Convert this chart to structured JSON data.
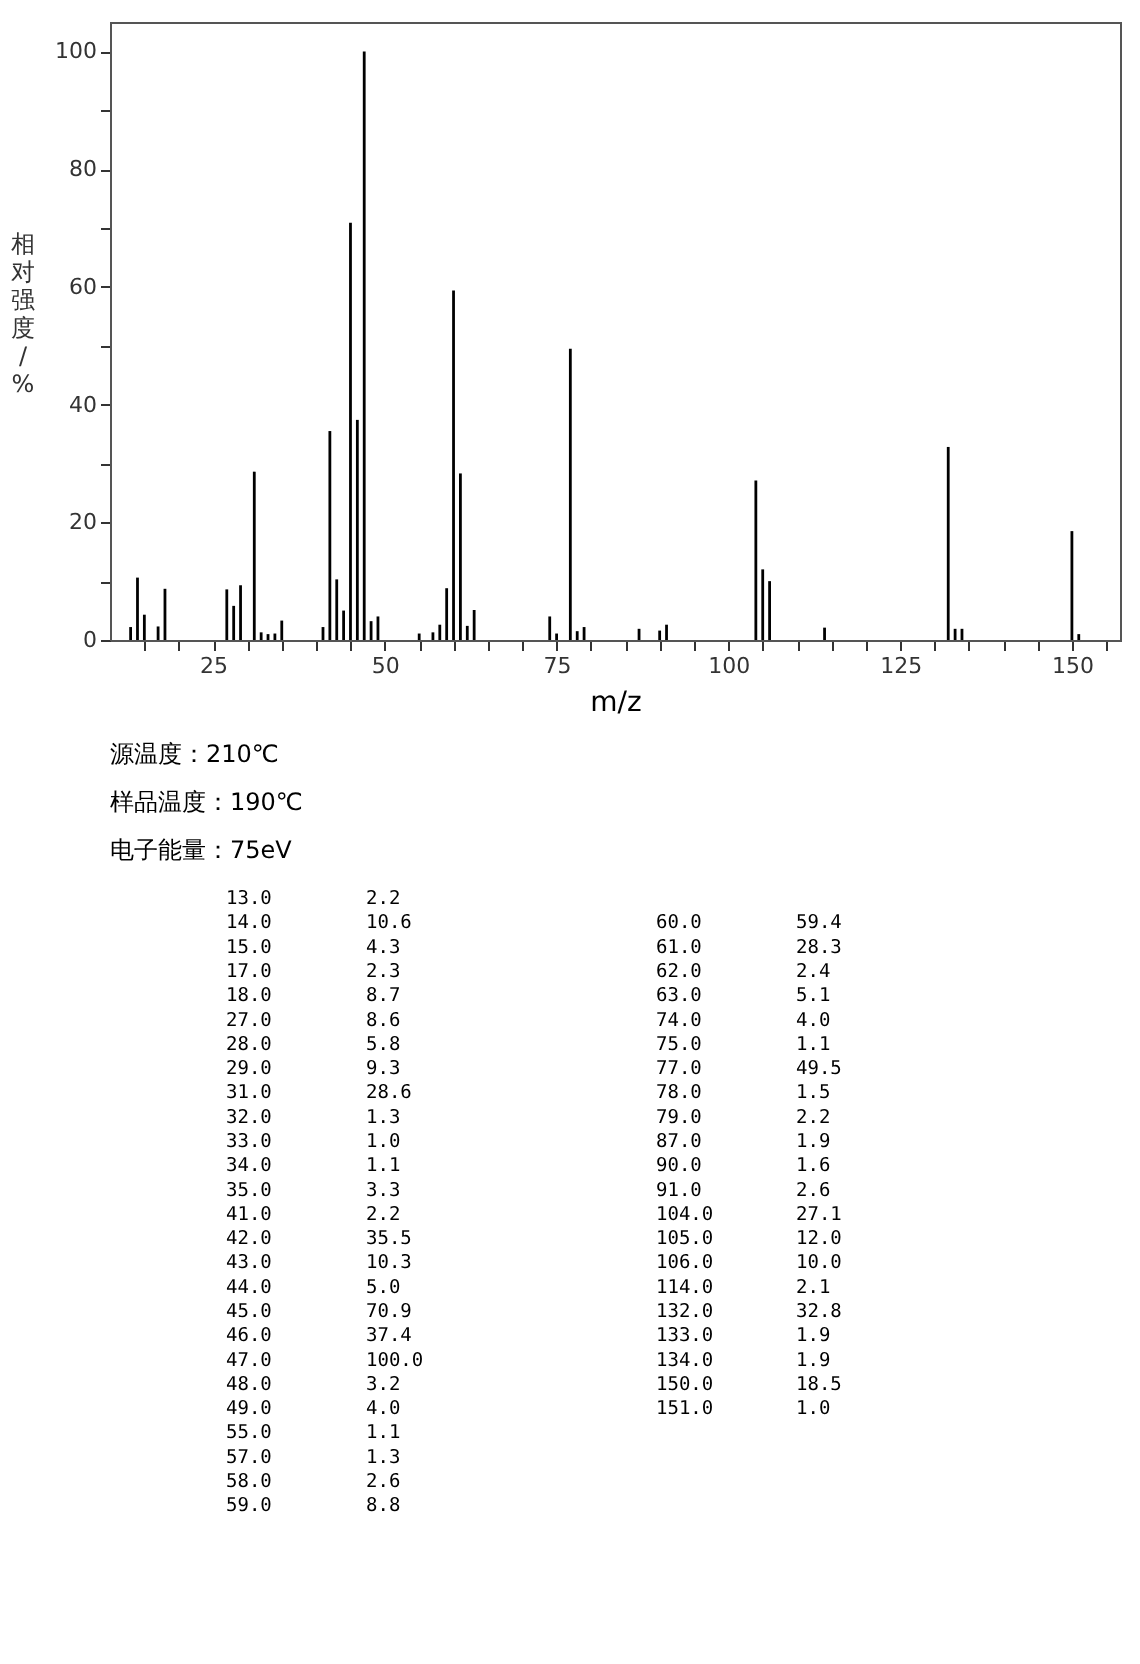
{
  "chart_data": [
    {
      "type": "bar",
      "xlabel": "m/z",
      "ylabel": "相对强度/%",
      "x": [
        13,
        14,
        15,
        17,
        18,
        27,
        28,
        29,
        31,
        32,
        33,
        34,
        35,
        41,
        42,
        43,
        44,
        45,
        46,
        47,
        48,
        49,
        55,
        57,
        58,
        59,
        60,
        61,
        62,
        63,
        74,
        75,
        77,
        78,
        79,
        87,
        90,
        91,
        104,
        105,
        106,
        114,
        132,
        133,
        134,
        150,
        151
      ],
      "values": [
        2.2,
        10.6,
        4.3,
        2.3,
        8.7,
        8.6,
        5.8,
        9.3,
        28.6,
        1.3,
        1.0,
        1.1,
        3.3,
        2.2,
        35.5,
        10.3,
        5.0,
        70.9,
        37.4,
        100.0,
        3.2,
        4.0,
        1.1,
        1.3,
        2.6,
        8.8,
        59.4,
        28.3,
        2.4,
        5.1,
        4.0,
        1.1,
        49.5,
        1.5,
        2.2,
        1.9,
        1.6,
        2.6,
        27.1,
        12.0,
        10.0,
        2.1,
        32.8,
        1.9,
        1.9,
        18.5,
        1.0
      ],
      "color": "#000000",
      "xlim": [
        10,
        157
      ],
      "ylim": [
        0,
        105
      ],
      "xticks": [
        {
          "value": 15,
          "label": null
        },
        {
          "value": 20,
          "label": null
        },
        25,
        {
          "value": 30,
          "label": null
        },
        {
          "value": 35,
          "label": null
        },
        {
          "value": 40,
          "label": null
        },
        {
          "value": 45,
          "label": null
        },
        50,
        {
          "value": 55,
          "label": null
        },
        {
          "value": 60,
          "label": null
        },
        {
          "value": 65,
          "label": null
        },
        {
          "value": 70,
          "label": null
        },
        75,
        {
          "value": 80,
          "label": null
        },
        {
          "value": 85,
          "label": null
        },
        {
          "value": 90,
          "label": null
        },
        {
          "value": 95,
          "label": null
        },
        100,
        {
          "value": 105,
          "label": null
        },
        {
          "value": 110,
          "label": null
        },
        {
          "value": 115,
          "label": null
        },
        {
          "value": 120,
          "label": null
        },
        125,
        {
          "value": 130,
          "label": null
        },
        {
          "value": 135,
          "label": null
        },
        {
          "value": 140,
          "label": null
        },
        {
          "value": 145,
          "label": null
        },
        150,
        {
          "value": 155,
          "label": null
        }
      ],
      "yticks": [
        0,
        {
          "value": 10,
          "label": null
        },
        20,
        {
          "value": 30,
          "label": null
        },
        40,
        {
          "value": 50,
          "label": null
        },
        60,
        {
          "value": 70,
          "label": null
        },
        80,
        {
          "value": 90,
          "label": null
        },
        100
      ],
      "grid": false,
      "annotations": [
        "源温度：210℃",
        "样品温度：190℃",
        "电子能量：75eV"
      ]
    },
    {
      "type": "other",
      "annotations": [
        "13.0",
        "2.2",
        "14.0",
        "10.6",
        "15.0",
        "4.3",
        "17.0",
        "2.3",
        "18.0",
        "8.7",
        "27.0",
        "8.6",
        "28.0",
        "5.8",
        "29.0",
        "9.3",
        "31.0",
        "28.6",
        "32.0",
        "1.3",
        "33.0",
        "1.0",
        "34.0",
        "1.1",
        "35.0",
        "3.3",
        "41.0",
        "2.2",
        "42.0",
        "35.5",
        "43.0",
        "10.3",
        "44.0",
        "5.0",
        "45.0",
        "70.9",
        "46.0",
        "37.4",
        "47.0",
        "100.0",
        "48.0",
        "3.2",
        "49.0",
        "4.0",
        "55.0",
        "1.1",
        "57.0",
        "1.3",
        "58.0",
        "2.6",
        "59.0",
        "8.8",
        "60.0",
        "59.4",
        "61.0",
        "28.3",
        "62.0",
        "2.4",
        "63.0",
        "5.1",
        "74.0",
        "4.0",
        "75.0",
        "1.1",
        "77.0",
        "49.5",
        "78.0",
        "1.5",
        "79.0",
        "2.2",
        "87.0",
        "1.9",
        "90.0",
        "1.6",
        "91.0",
        "2.6",
        "104.0",
        "27.1",
        "105.0",
        "12.0",
        "106.0",
        "10.0",
        "114.0",
        "2.1",
        "132.0",
        "32.8",
        "133.0",
        "1.9",
        "134.0",
        "1.9",
        "150.0",
        "18.5",
        "151.0",
        "1.0"
      ]
    }
  ]
}
